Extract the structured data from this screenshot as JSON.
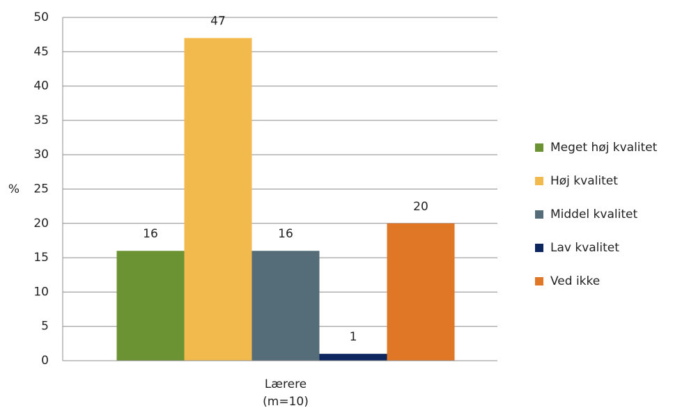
{
  "chart_data": {
    "type": "bar",
    "y_label": "%",
    "categories": [
      "Lærere\n(m=10)"
    ],
    "series": [
      {
        "name": "Meget høj kvalitet",
        "color": "#6b9333",
        "values": [
          16
        ]
      },
      {
        "name": "Høj kvalitet",
        "color": "#f2b94c",
        "values": [
          47
        ]
      },
      {
        "name": "Middel kvalitet",
        "color": "#546d78",
        "values": [
          16
        ]
      },
      {
        "name": "Lav kvalitet",
        "color": "#0e2660",
        "values": [
          1
        ]
      },
      {
        "name": "Ved ikke",
        "color": "#e07726",
        "values": [
          20
        ]
      }
    ],
    "ylim": [
      0,
      50
    ],
    "yticks": [
      0,
      5,
      10,
      15,
      20,
      25,
      30,
      35,
      40,
      45,
      50
    ],
    "grid": true,
    "legend": "right"
  }
}
